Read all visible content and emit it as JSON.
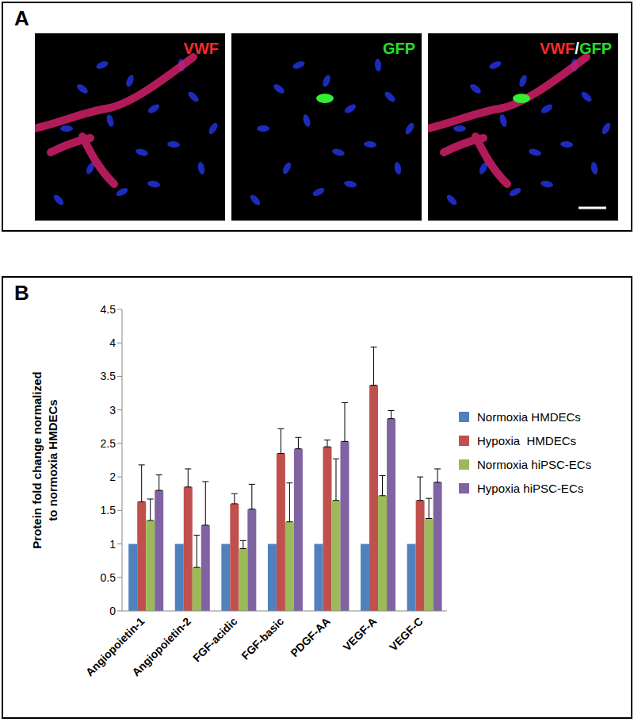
{
  "panel_a": {
    "label": "A",
    "images": [
      {
        "label_parts": [
          {
            "text": "VWF",
            "color": "#ff2a2a"
          }
        ]
      },
      {
        "label_parts": [
          {
            "text": "GFP",
            "color": "#22e022"
          }
        ]
      },
      {
        "label_parts": [
          {
            "text": "VWF",
            "color": "#ff2a2a"
          },
          {
            "text": "/",
            "color": "#ffffff"
          },
          {
            "text": "GFP",
            "color": "#22e022"
          }
        ]
      }
    ]
  },
  "chart_data": {
    "panel_label": "B",
    "type": "bar",
    "ylabel": [
      "Protein fold change normalized",
      "to normoxia HMDECs"
    ],
    "categories": [
      "Angiopoietin-1",
      "Angiopoietin-2",
      "FGF-acidic",
      "FGF-basic",
      "PDGF-AA",
      "VEGF-A",
      "VEGF-C"
    ],
    "series": [
      {
        "name": "Normoxia HMDECs",
        "color": "#4f81bd",
        "values": [
          1,
          1,
          1,
          1,
          1,
          1,
          1
        ]
      },
      {
        "name": "Hypoxia  HMDECs",
        "color": "#c0504d",
        "values": [
          1.63,
          1.85,
          1.6,
          2.35,
          2.45,
          3.37,
          1.65
        ],
        "errors": [
          0.55,
          0.27,
          0.15,
          0.37,
          0.1,
          0.57,
          0.35
        ]
      },
      {
        "name": "Normoxia hiPSC-ECs",
        "color": "#9bbb59",
        "values": [
          1.35,
          0.65,
          0.93,
          1.33,
          1.65,
          1.72,
          1.38
        ],
        "errors": [
          0.32,
          0.48,
          0.12,
          0.58,
          0.62,
          0.3,
          0.3
        ]
      },
      {
        "name": "Hypoxia hiPSC-ECs",
        "color": "#8064a2",
        "values": [
          1.8,
          1.28,
          1.52,
          2.42,
          2.53,
          2.87,
          1.92
        ],
        "errors": [
          0.23,
          0.65,
          0.37,
          0.17,
          0.58,
          0.12,
          0.2
        ]
      }
    ],
    "ylim": [
      0,
      4.5
    ],
    "yticks": [
      0,
      0.5,
      1,
      1.5,
      2,
      2.5,
      3,
      3.5,
      4,
      4.5
    ],
    "grid": false,
    "legend": "right"
  }
}
